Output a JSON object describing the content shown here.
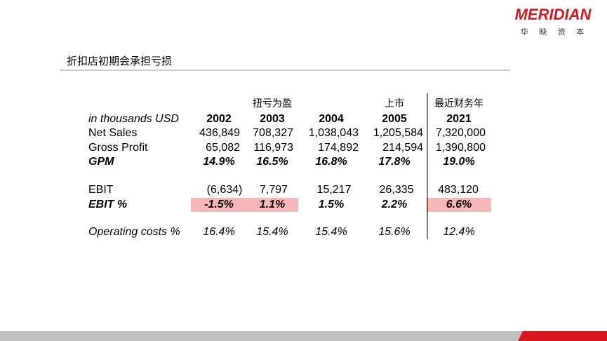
{
  "header": {
    "logo": "MERIDIAN",
    "logo_sub": "华 映 资 本",
    "title": "折扣店初期会承担亏损"
  },
  "table": {
    "column_notes": [
      "扭亏为盈",
      "上市",
      "最近财务年"
    ],
    "columns": [
      "in thousands USD",
      "2002",
      "2003",
      "2004",
      "2005",
      "2021"
    ],
    "rows": [
      [
        "Net Sales",
        "436,849",
        "708,327",
        "1,038,043",
        "1,205,584",
        "7,320,000"
      ],
      [
        "Gross Profit",
        "65,082",
        "116,973",
        "174,892",
        "214,594",
        "1,390,800"
      ],
      [
        "GPM",
        "14.9%",
        "16.5%",
        "16.8%",
        "17.8%",
        "19.0%"
      ],
      [
        "EBIT",
        "(6,634)",
        "7,797",
        "15,217",
        "26,335",
        "483,120"
      ],
      [
        "EBIT %",
        "-1.5%",
        "1.1%",
        "1.5%",
        "2.2%",
        "6.6%"
      ],
      [
        "Operating costs %",
        "16.4%",
        "15.4%",
        "15.4%",
        "15.6%",
        "12.4%"
      ]
    ]
  }
}
